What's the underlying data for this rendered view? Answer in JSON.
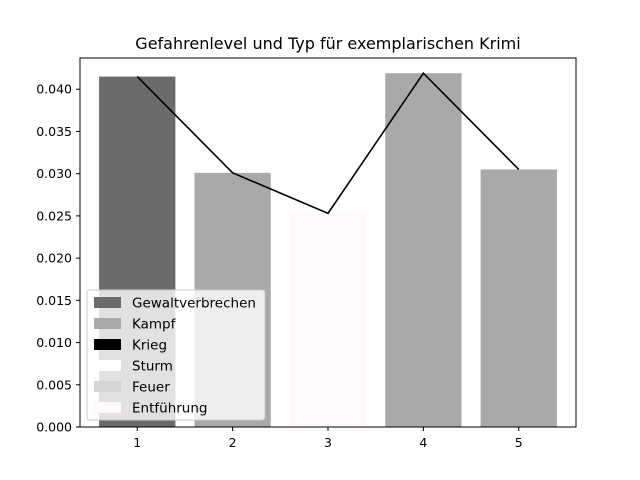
{
  "chart_data": {
    "type": "bar",
    "title": "Gefahrenlevel und Typ für exemplarischen Krimi",
    "xlabel": "",
    "ylabel": "",
    "categories": [
      "1",
      "2",
      "3",
      "4",
      "5"
    ],
    "values": [
      0.0415,
      0.0301,
      0.0253,
      0.0419,
      0.0305
    ],
    "bar_colors": [
      "#6b6b6b",
      "#a9a9a9",
      "#fffafa",
      "#a9a9a9",
      "#a9a9a9"
    ],
    "line": {
      "values": [
        0.0415,
        0.0301,
        0.0253,
        0.0419,
        0.0305
      ],
      "color": "#000000"
    },
    "ylim": [
      0,
      0.0437
    ],
    "yticks": [
      "0.000",
      "0.005",
      "0.010",
      "0.015",
      "0.020",
      "0.025",
      "0.030",
      "0.035",
      "0.040"
    ],
    "grid": false,
    "legend": {
      "placement": "lower-left",
      "entries": [
        {
          "label": "Gewaltverbrechen",
          "color": "#6b6b6b"
        },
        {
          "label": "Kampf",
          "color": "#a9a9a9"
        },
        {
          "label": "Krieg",
          "color": "#000000"
        },
        {
          "label": "Sturm",
          "color": "#ffffff"
        },
        {
          "label": "Feuer",
          "color": "#d3d3d3"
        },
        {
          "label": "Entführung",
          "color": "#fffafa"
        }
      ]
    }
  }
}
